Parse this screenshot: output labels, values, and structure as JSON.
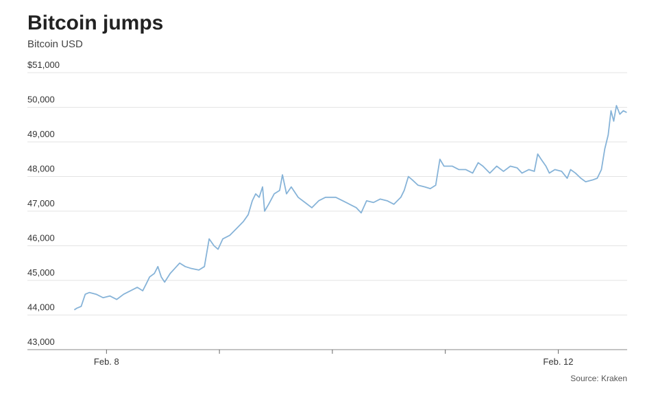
{
  "chart_data": {
    "type": "line",
    "title": "Bitcoin jumps",
    "subtitle": "Bitcoin USD",
    "source": "Source: Kraken",
    "x": [
      7.715,
      7.739,
      7.776,
      7.812,
      7.848,
      7.909,
      7.97,
      8.03,
      8.091,
      8.152,
      8.212,
      8.273,
      8.321,
      8.352,
      8.382,
      8.424,
      8.455,
      8.485,
      8.515,
      8.564,
      8.606,
      8.648,
      8.697,
      8.745,
      8.818,
      8.867,
      8.909,
      8.952,
      8.988,
      9.03,
      9.091,
      9.152,
      9.212,
      9.255,
      9.291,
      9.321,
      9.352,
      9.382,
      9.4,
      9.436,
      9.485,
      9.533,
      9.558,
      9.594,
      9.636,
      9.697,
      9.758,
      9.818,
      9.879,
      9.939,
      10.03,
      10.091,
      10.152,
      10.212,
      10.255,
      10.303,
      10.364,
      10.424,
      10.485,
      10.545,
      10.606,
      10.636,
      10.673,
      10.709,
      10.758,
      10.818,
      10.867,
      10.915,
      10.952,
      10.988,
      11.061,
      11.121,
      11.182,
      11.242,
      11.291,
      11.333,
      11.394,
      11.455,
      11.515,
      11.576,
      11.636,
      11.679,
      11.739,
      11.788,
      11.818,
      11.848,
      11.891,
      11.921,
      11.97,
      12.03,
      12.079,
      12.109,
      12.152,
      12.2,
      12.242,
      12.303,
      12.345,
      12.382,
      12.412,
      12.442,
      12.467,
      12.491,
      12.515,
      12.545,
      12.576,
      12.606
    ],
    "series": [
      {
        "name": "Bitcoin USD",
        "color": "#86b3d8",
        "values": [
          44150,
          44200,
          44250,
          44600,
          44650,
          44600,
          44500,
          44550,
          44450,
          44600,
          44700,
          44800,
          44700,
          44900,
          45100,
          45200,
          45400,
          45100,
          44950,
          45200,
          45350,
          45500,
          45400,
          45350,
          45300,
          45400,
          46200,
          46000,
          45900,
          46200,
          46300,
          46500,
          46700,
          46900,
          47300,
          47500,
          47400,
          47700,
          47000,
          47200,
          47500,
          47600,
          48050,
          47500,
          47700,
          47400,
          47250,
          47100,
          47300,
          47400,
          47400,
          47300,
          47200,
          47100,
          46950,
          47300,
          47250,
          47350,
          47300,
          47200,
          47400,
          47600,
          48000,
          47900,
          47750,
          47700,
          47650,
          47750,
          48500,
          48300,
          48300,
          48200,
          48200,
          48100,
          48400,
          48300,
          48100,
          48300,
          48150,
          48300,
          48250,
          48100,
          48200,
          48150,
          48650,
          48500,
          48300,
          48100,
          48200,
          48150,
          47950,
          48200,
          48100,
          47950,
          47850,
          47900,
          47950,
          48200,
          48800,
          49200,
          49900,
          49600,
          50050,
          49800,
          49900,
          49850
        ]
      }
    ],
    "xlim": [
      7.3,
      12.61
    ],
    "xticks": [
      {
        "value": 8,
        "label": "Feb. 8"
      },
      {
        "value": 12,
        "label": "Feb. 12"
      }
    ],
    "xminor_ticks": [
      9,
      10,
      11
    ],
    "ylim": [
      43000,
      51000
    ],
    "yticks": [
      {
        "value": 43000,
        "label": "43,000"
      },
      {
        "value": 44000,
        "label": "44,000"
      },
      {
        "value": 45000,
        "label": "45,000"
      },
      {
        "value": 46000,
        "label": "46,000"
      },
      {
        "value": 47000,
        "label": "47,000"
      },
      {
        "value": 48000,
        "label": "48,000"
      },
      {
        "value": 49000,
        "label": "49,000"
      },
      {
        "value": 50000,
        "label": "50,000"
      },
      {
        "value": 51000,
        "label": "$51,000"
      }
    ],
    "grid": true
  }
}
